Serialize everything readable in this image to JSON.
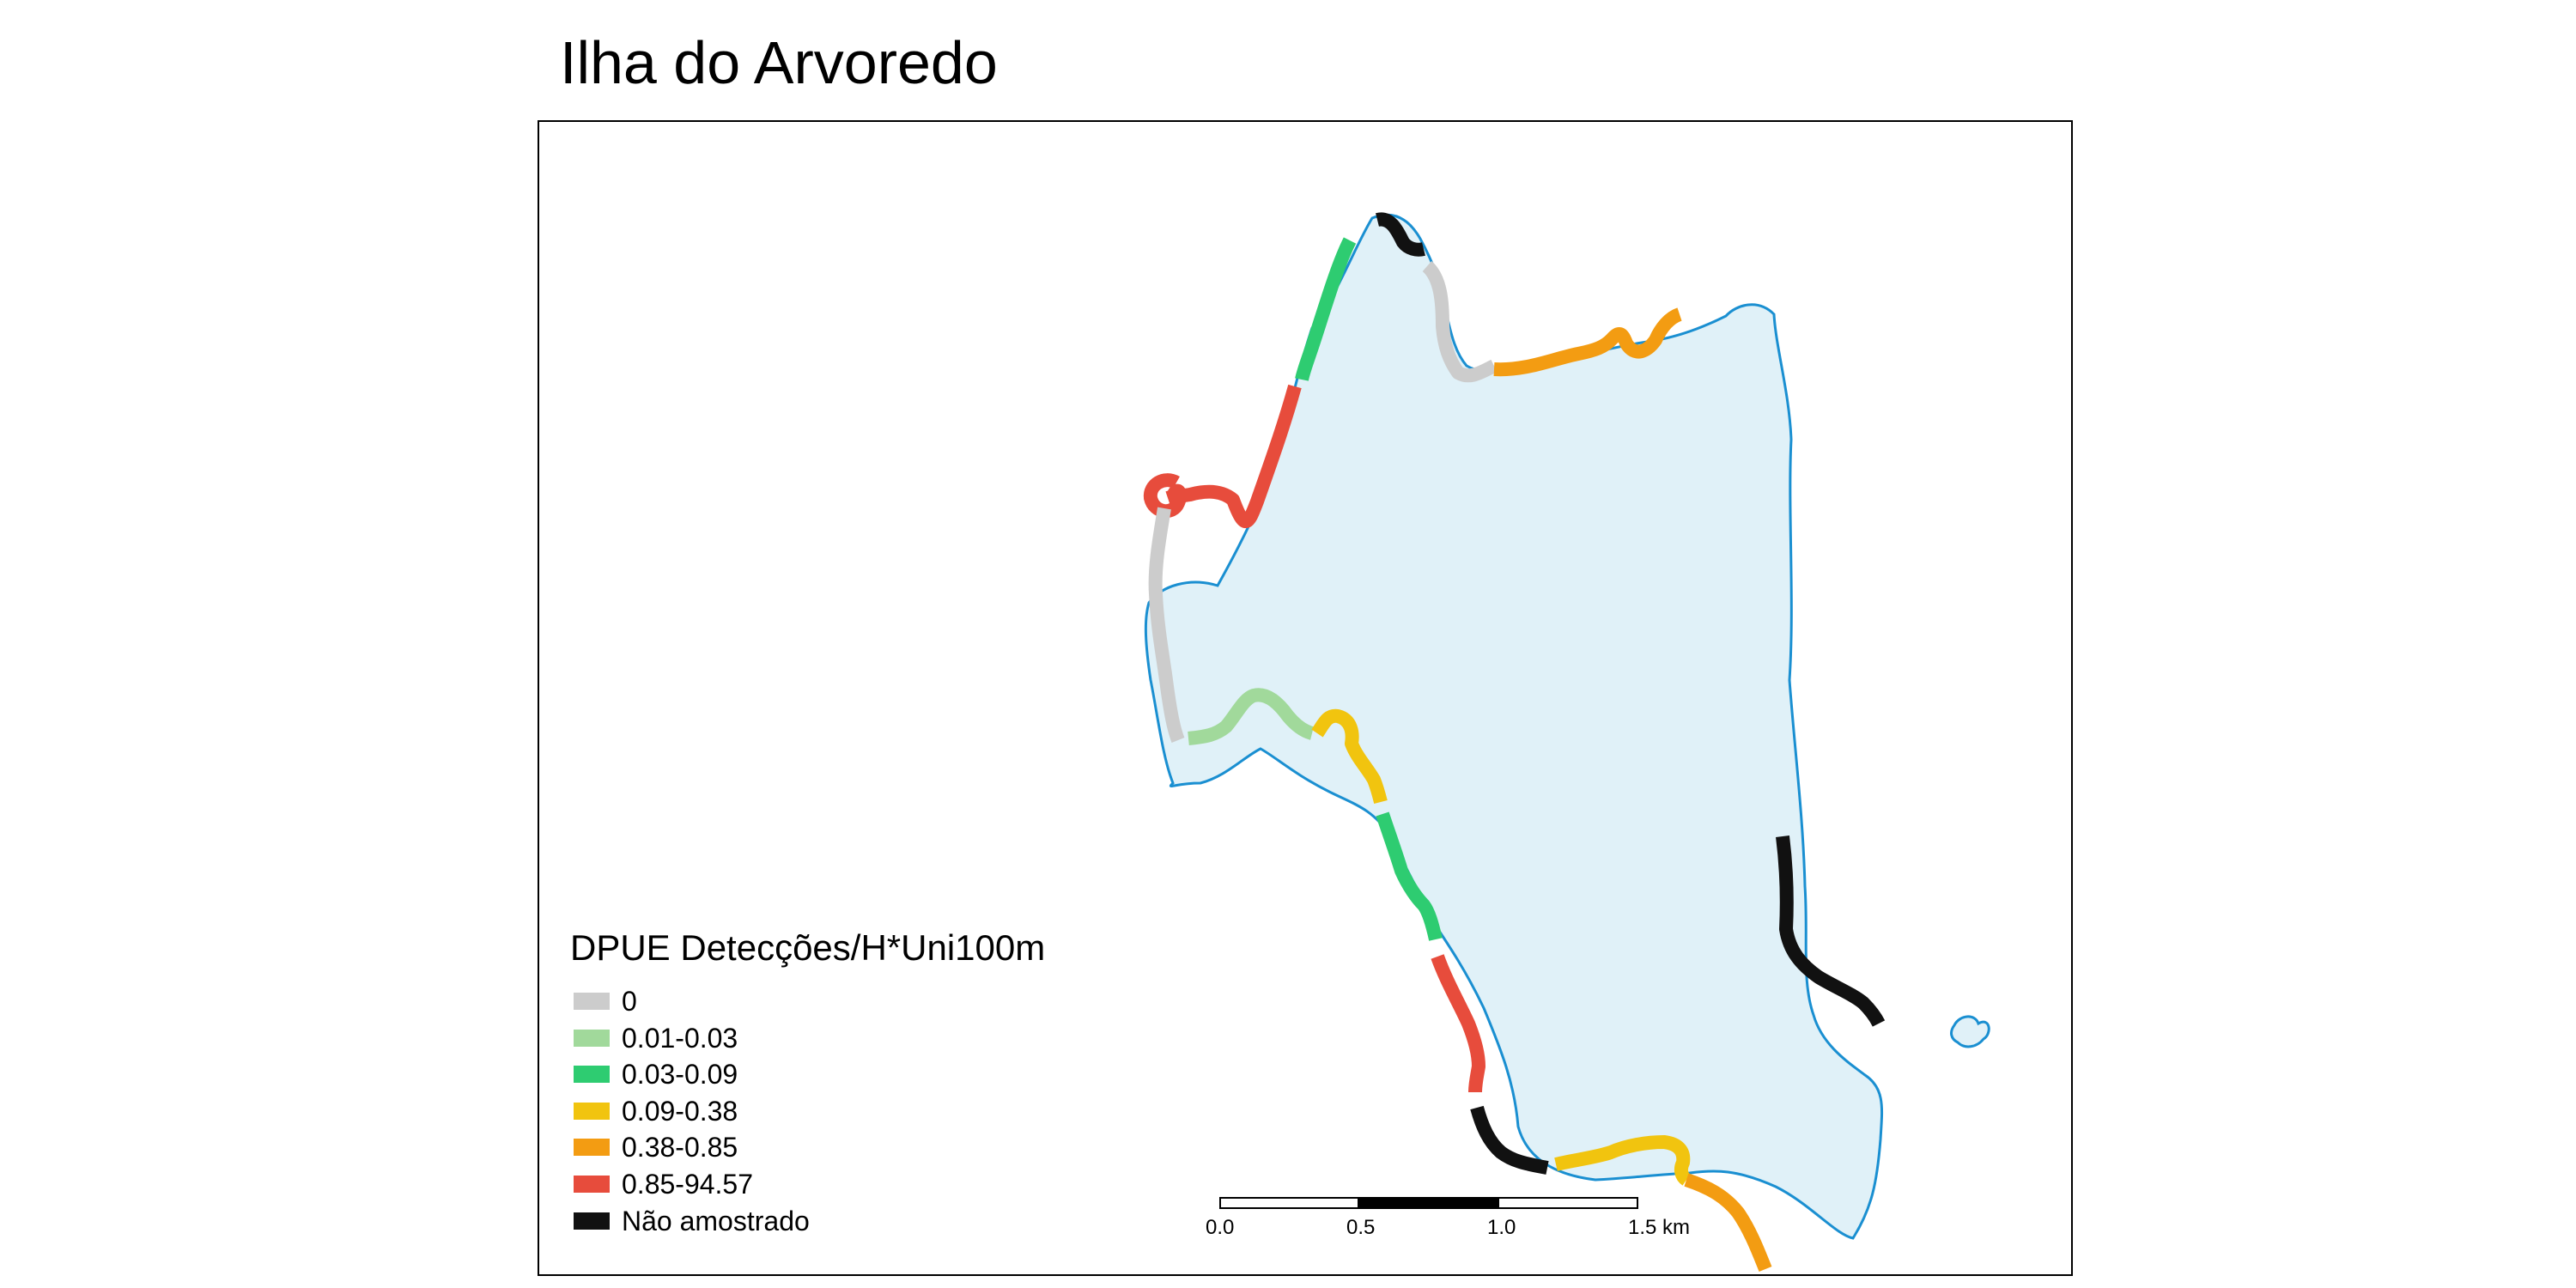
{
  "title": "Ilha do Arvoredo",
  "legend": {
    "title": "DPUE Detecções/H*Uni100m",
    "items": [
      {
        "label": "0",
        "color": "#cccccc"
      },
      {
        "label": "0.01-0.03",
        "color": "#a1d99b"
      },
      {
        "label": "0.03-0.09",
        "color": "#2ecc71"
      },
      {
        "label": "0.09-0.38",
        "color": "#f1c40f"
      },
      {
        "label": "0.38-0.85",
        "color": "#f39c12"
      },
      {
        "label": "0.85-94.57",
        "color": "#e74c3c"
      },
      {
        "label": "Não amostrado",
        "color": "#111111"
      }
    ]
  },
  "scalebar": {
    "labels": [
      "0.0",
      "0.5",
      "1.0",
      "1.5"
    ],
    "unit": "km"
  },
  "colors": {
    "land_fill": "#e0f1f8",
    "coastline": "#1a8fd1",
    "frame": "#000000"
  }
}
